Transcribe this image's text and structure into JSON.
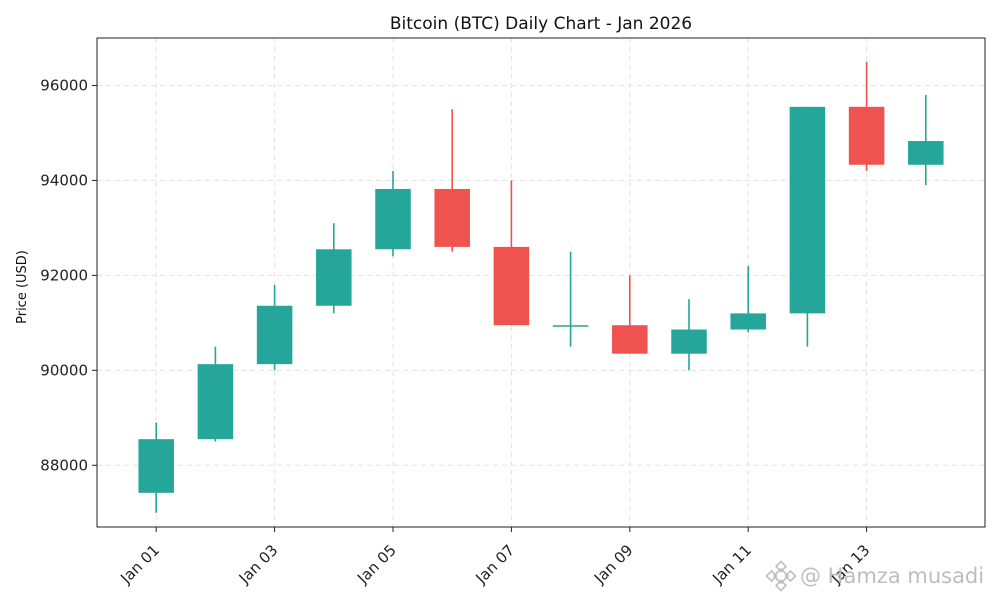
{
  "chart_data": {
    "type": "candlestick",
    "title": "Bitcoin (BTC) Daily Chart - Jan 2026",
    "xlabel": "",
    "ylabel": "Price (USD)",
    "ylim": [
      86700,
      97000
    ],
    "yticks": [
      88000,
      90000,
      92000,
      94000,
      96000
    ],
    "grid": true,
    "colors": {
      "up": "#26a69a",
      "down": "#ef5350",
      "grid": "#e3e3e3",
      "axis": "#222222"
    },
    "xtick_labels": [
      "Jan 01",
      "Jan 03",
      "Jan 05",
      "Jan 07",
      "Jan 09",
      "Jan 11",
      "Jan 13"
    ],
    "xtick_indices": [
      0,
      2,
      4,
      6,
      8,
      10,
      12
    ],
    "candles": [
      {
        "date": "Jan 01",
        "open": 87420,
        "high": 88900,
        "low": 87000,
        "close": 88550
      },
      {
        "date": "Jan 02",
        "open": 88550,
        "high": 90500,
        "low": 88500,
        "close": 90130
      },
      {
        "date": "Jan 03",
        "open": 90130,
        "high": 91800,
        "low": 90000,
        "close": 91360
      },
      {
        "date": "Jan 04",
        "open": 91360,
        "high": 93100,
        "low": 91200,
        "close": 92550
      },
      {
        "date": "Jan 05",
        "open": 92550,
        "high": 94200,
        "low": 92400,
        "close": 93820
      },
      {
        "date": "Jan 06",
        "open": 93820,
        "high": 95500,
        "low": 92500,
        "close": 92600
      },
      {
        "date": "Jan 07",
        "open": 92600,
        "high": 94000,
        "low": 90950,
        "close": 90950
      },
      {
        "date": "Jan 08",
        "open": 90950,
        "high": 92500,
        "low": 90500,
        "close": 90950
      },
      {
        "date": "Jan 09",
        "open": 90950,
        "high": 92000,
        "low": 90350,
        "close": 90350
      },
      {
        "date": "Jan 10",
        "open": 90350,
        "high": 91500,
        "low": 90000,
        "close": 90860
      },
      {
        "date": "Jan 11",
        "open": 90860,
        "high": 92200,
        "low": 90800,
        "close": 91200
      },
      {
        "date": "Jan 12",
        "open": 91200,
        "high": 95550,
        "low": 90500,
        "close": 95550
      },
      {
        "date": "Jan 13",
        "open": 95550,
        "high": 96500,
        "low": 94200,
        "close": 94330
      },
      {
        "date": "Jan 14",
        "open": 94330,
        "high": 95800,
        "low": 93900,
        "close": 94830
      }
    ]
  },
  "watermark": {
    "text": "@ Hamza musadi",
    "icon": "binance-diamond-icon"
  }
}
